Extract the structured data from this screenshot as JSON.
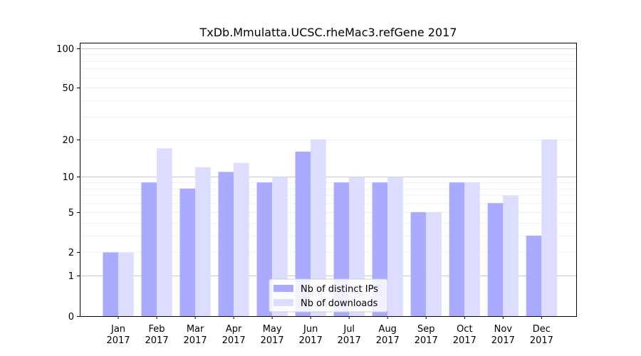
{
  "chart_data": {
    "type": "bar",
    "title": "TxDb.Mmulatta.UCSC.rheMac3.refGene 2017",
    "xlabel": "",
    "ylabel": "",
    "yscale": "log(1+y)",
    "ylim": [
      0,
      110
    ],
    "yticks": [
      0,
      1,
      2,
      5,
      10,
      20,
      50,
      100
    ],
    "categories": [
      [
        "Jan",
        "2017"
      ],
      [
        "Feb",
        "2017"
      ],
      [
        "Mar",
        "2017"
      ],
      [
        "Apr",
        "2017"
      ],
      [
        "May",
        "2017"
      ],
      [
        "Jun",
        "2017"
      ],
      [
        "Jul",
        "2017"
      ],
      [
        "Aug",
        "2017"
      ],
      [
        "Sep",
        "2017"
      ],
      [
        "Oct",
        "2017"
      ],
      [
        "Nov",
        "2017"
      ],
      [
        "Dec",
        "2017"
      ]
    ],
    "series": [
      {
        "name": "Nb of distinct IPs",
        "color": "#aaaaff",
        "values": [
          2,
          9,
          8,
          11,
          9,
          16,
          9,
          9,
          5,
          9,
          6,
          3
        ]
      },
      {
        "name": "Nb of downloads",
        "color": "#ddddff",
        "values": [
          2,
          17,
          12,
          13,
          10,
          20,
          10,
          10,
          5,
          9,
          7,
          20
        ]
      }
    ],
    "legend": {
      "position": "lower-center"
    },
    "grid": true
  }
}
